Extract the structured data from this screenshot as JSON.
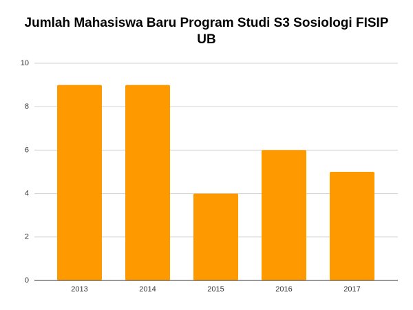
{
  "chart_data": {
    "type": "bar",
    "title": "Jumlah Mahasiswa Baru Program Studi S3 Sosiologi FISIP UB",
    "categories": [
      "2013",
      "2014",
      "2015",
      "2016",
      "2017"
    ],
    "values": [
      9,
      9,
      4,
      6,
      5
    ],
    "color": "#ff9900",
    "ylim": [
      0,
      10
    ],
    "yticks": [
      0,
      2,
      4,
      6,
      8,
      10
    ],
    "grid": true
  }
}
